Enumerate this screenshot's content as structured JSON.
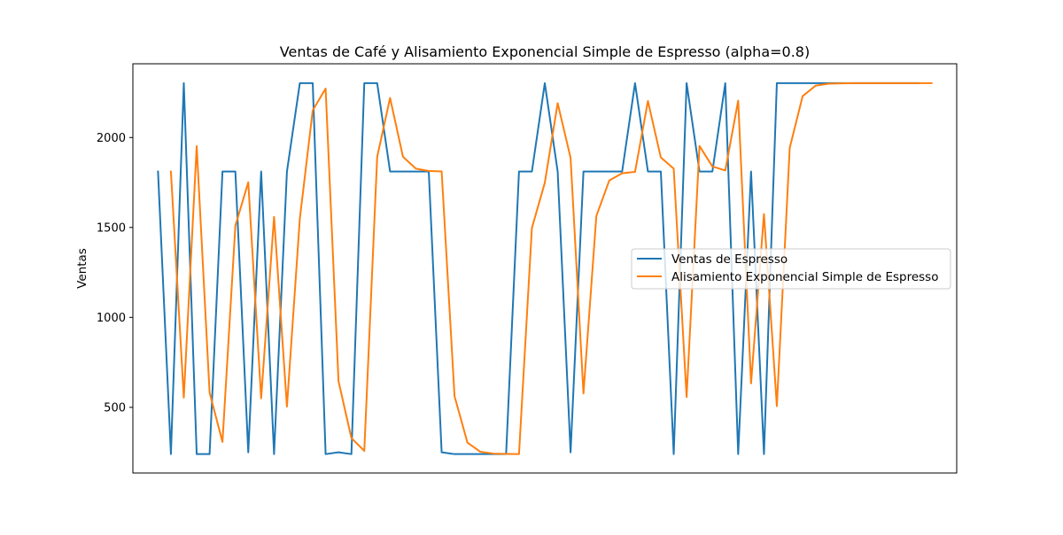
{
  "chart_data": {
    "type": "line",
    "title": "Ventas de Café y Alisamiento Exponencial Simple de Espresso (alpha=0.8)",
    "xlabel": "",
    "ylabel": "Ventas",
    "xlim": [
      -1.95,
      61.95
    ],
    "ylim": [
      135,
      2410
    ],
    "yticks": [
      500,
      1000,
      1500,
      2000
    ],
    "x_ticks_visible": false,
    "grid": false,
    "legend_position": "center-right",
    "series": [
      {
        "name": "Ventas de Espresso",
        "color": "#1f77b4",
        "x": [
          0,
          1,
          2,
          3,
          4,
          5,
          6,
          7,
          8,
          9,
          10,
          11,
          12,
          13,
          14,
          15,
          16,
          17,
          18,
          19,
          20,
          21,
          22,
          23,
          24,
          25,
          26,
          27,
          28,
          29,
          30,
          31,
          32,
          33,
          34,
          35,
          36,
          37,
          38,
          39,
          40,
          41,
          42,
          43,
          44,
          45,
          46,
          47,
          48,
          49,
          50,
          51,
          52,
          53,
          54,
          55,
          56,
          57,
          58,
          59
        ],
        "values": [
          1811,
          240,
          2302,
          240,
          240,
          1811,
          1811,
          250,
          1811,
          240,
          1811,
          2302,
          2302,
          240,
          250,
          240,
          2302,
          2302,
          1811,
          1811,
          1811,
          1811,
          250,
          240,
          240,
          240,
          240,
          240,
          1811,
          1811,
          2302,
          1811,
          250,
          1811,
          1811,
          1811,
          1811,
          2302,
          1811,
          1811,
          240,
          2302,
          1811,
          1811,
          2302,
          240,
          1811,
          240,
          2302,
          2302,
          2302,
          2302,
          2302,
          2302,
          2302,
          2302,
          2302,
          2302,
          2302,
          2302
        ]
      },
      {
        "name": "Alisamiento Exponencial Simple de Espresso",
        "color": "#ff7f0e",
        "x": [
          1,
          2,
          3,
          4,
          5,
          6,
          7,
          8,
          9,
          10,
          11,
          12,
          13,
          14,
          15,
          16,
          17,
          18,
          19,
          20,
          21,
          22,
          23,
          24,
          25,
          26,
          27,
          28,
          29,
          30,
          31,
          32,
          33,
          34,
          35,
          36,
          37,
          38,
          39,
          40,
          41,
          42,
          43,
          44,
          45,
          46,
          47,
          48,
          49,
          50,
          51,
          52,
          53,
          54,
          55,
          56,
          57,
          58,
          59,
          60
        ],
        "values": [
          1811,
          554,
          1952,
          582,
          308,
          1510,
          1751,
          550,
          1559,
          504,
          1549,
          2151,
          2272,
          646,
          329,
          258,
          1893,
          2220,
          1893,
          1827,
          1814,
          1812,
          562,
          304,
          253,
          243,
          241,
          240,
          1497,
          1748,
          2191,
          1887,
          577,
          1564,
          1761,
          1801,
          1809,
          2203,
          1889,
          1827,
          557,
          1953,
          1839,
          1817,
          2205,
          633,
          1575,
          507,
          1943,
          2230,
          2288,
          2299,
          2301,
          2302,
          2302,
          2302,
          2302,
          2302,
          2302,
          2302
        ]
      }
    ]
  }
}
